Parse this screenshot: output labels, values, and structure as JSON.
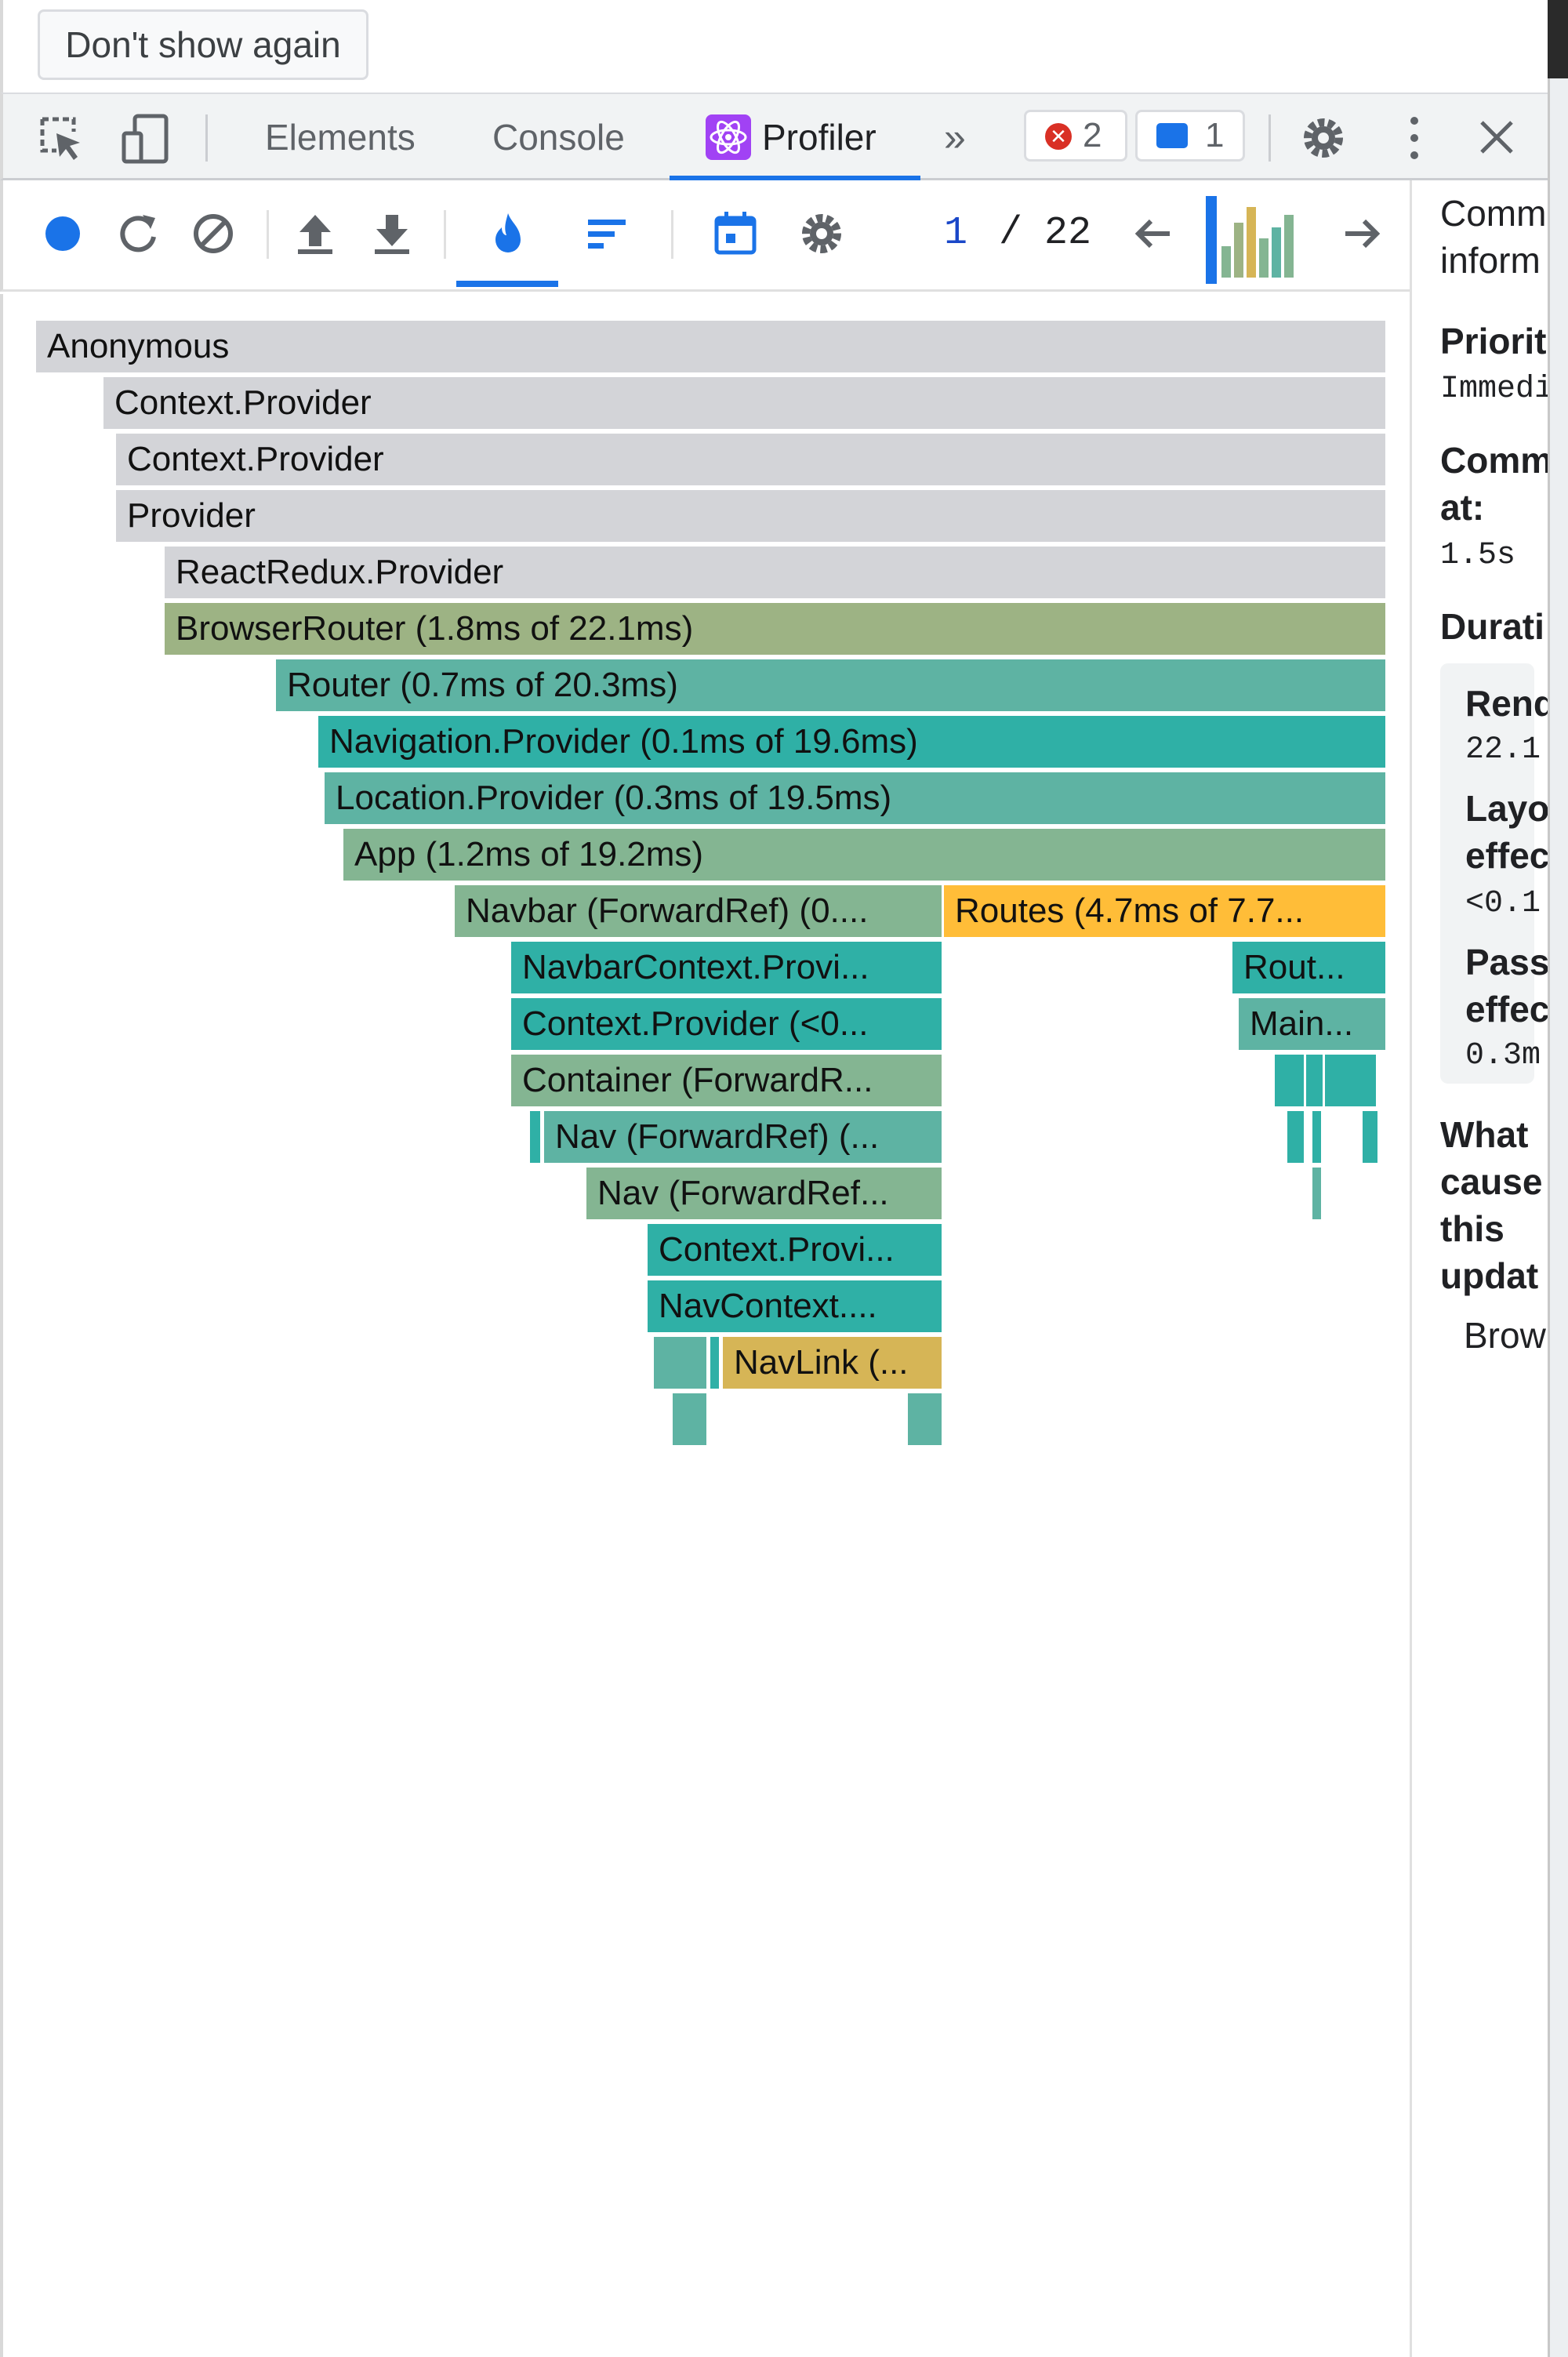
{
  "notice": {
    "dont_show_label": "Don't show again"
  },
  "tabs": {
    "elements": "Elements",
    "console": "Console",
    "profiler": "Profiler",
    "more": "»",
    "errors_count": "2",
    "messages_count": "1"
  },
  "toolbar": {
    "commit_current": "1",
    "commit_separator": "/",
    "commit_total": "22"
  },
  "side": {
    "commit_info": [
      "Comm",
      "inform"
    ],
    "priority_label": "Priorit",
    "priority_value": "Immedi",
    "committed_label": [
      "Comm",
      "at:"
    ],
    "committed_value": "1.5s",
    "duration_label": "Durati",
    "render_label": "Rend",
    "render_value": "22.1",
    "layout_label": [
      "Layo",
      "effec"
    ],
    "layout_value": "<0.1",
    "passive_label": [
      "Pass",
      "effec"
    ],
    "passive_value": "0.3m",
    "cause_label": [
      "What",
      "cause",
      "this",
      "updat"
    ],
    "cause_value": "Brow"
  },
  "flame": {
    "anonymous": "Anonymous",
    "context_provider_1": "Context.Provider",
    "context_provider_2": "Context.Provider",
    "provider": "Provider",
    "redux_provider": "ReactRedux.Provider",
    "browser_router": "BrowserRouter (1.8ms of 22.1ms)",
    "router": "Router (0.7ms of 20.3ms)",
    "navigation_provider": "Navigation.Provider (0.1ms of 19.6ms)",
    "location_provider": "Location.Provider (0.3ms of 19.5ms)",
    "app": "App (1.2ms of 19.2ms)",
    "navbar": "Navbar (ForwardRef) (0....",
    "routes": "Routes (4.7ms of 7.7...",
    "navbar_context": "NavbarContext.Provi...",
    "rout": "Rout...",
    "context_provider_lt": "Context.Provider (<0...",
    "main": "Main...",
    "container": "Container (ForwardR...",
    "nav_1": "Nav (ForwardRef) (...",
    "nav_2": "Nav (ForwardRef...",
    "context_provi": "Context.Provi...",
    "nav_context": "NavContext....",
    "navlink": "NavLink (..."
  },
  "colors": {
    "grey": "#d3d4d8",
    "olive": "#9db384",
    "teal": "#5eb3a3",
    "teal_dark": "#2fb0a6",
    "sage": "#84b592",
    "orange": "#ffbd38",
    "mustard": "#d6b556",
    "accent": "#1a73e8"
  }
}
